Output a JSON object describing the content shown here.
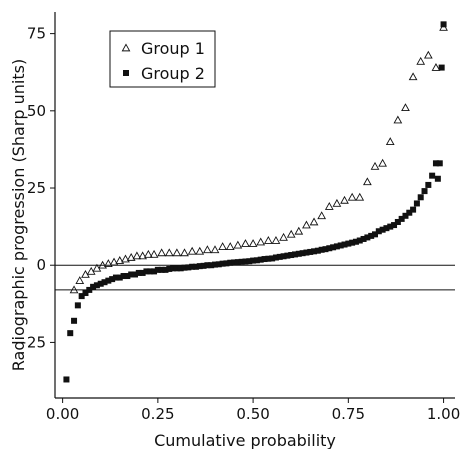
{
  "chart_data": {
    "type": "scatter",
    "xlabel": "Cumulative probability",
    "ylabel": "Radiographic progression (Sharp units)",
    "xlim": [
      -0.02,
      1.03
    ],
    "ylim": [
      -43,
      82
    ],
    "x_ticks": [
      0.0,
      0.25,
      0.5,
      0.75,
      1.0
    ],
    "x_tick_labels": [
      "0.00",
      "0.25",
      "0.50",
      "0.75",
      "1.00"
    ],
    "y_ticks": [
      -25,
      0,
      25,
      50,
      75
    ],
    "y_tick_labels": [
      "−25",
      "0",
      "25",
      "50",
      "75"
    ],
    "reference_lines_y": [
      0,
      -8
    ],
    "legend": {
      "position": "top-left"
    },
    "series": [
      {
        "name": "Group 1",
        "marker": "open-triangle",
        "x": [
          0.03,
          0.045,
          0.06,
          0.075,
          0.09,
          0.105,
          0.12,
          0.135,
          0.15,
          0.165,
          0.18,
          0.195,
          0.21,
          0.225,
          0.24,
          0.26,
          0.28,
          0.3,
          0.32,
          0.34,
          0.36,
          0.38,
          0.4,
          0.42,
          0.44,
          0.46,
          0.48,
          0.5,
          0.52,
          0.54,
          0.56,
          0.58,
          0.6,
          0.62,
          0.64,
          0.66,
          0.68,
          0.7,
          0.72,
          0.74,
          0.76,
          0.78,
          0.8,
          0.82,
          0.84,
          0.86,
          0.88,
          0.9,
          0.92,
          0.94,
          0.96,
          0.98,
          1.0
        ],
        "y": [
          -8,
          -5,
          -3,
          -2,
          -1,
          0,
          0.5,
          1,
          1.5,
          2,
          2.5,
          3,
          3,
          3.5,
          3.5,
          4,
          4,
          4,
          4,
          4.5,
          4.5,
          5,
          5,
          6,
          6,
          6.5,
          7,
          7,
          7.5,
          8,
          8,
          9,
          10,
          11,
          13,
          14,
          16,
          19,
          20,
          21,
          22,
          22,
          27,
          32,
          33,
          40,
          47,
          51,
          61,
          66,
          68,
          64,
          77
        ]
      },
      {
        "name": "Group 2",
        "marker": "filled-square",
        "x": [
          0.01,
          0.02,
          0.03,
          0.04,
          0.05,
          0.06,
          0.07,
          0.08,
          0.09,
          0.1,
          0.11,
          0.12,
          0.13,
          0.14,
          0.15,
          0.16,
          0.17,
          0.18,
          0.19,
          0.2,
          0.21,
          0.22,
          0.23,
          0.24,
          0.25,
          0.26,
          0.27,
          0.28,
          0.29,
          0.3,
          0.31,
          0.32,
          0.33,
          0.34,
          0.35,
          0.36,
          0.37,
          0.38,
          0.39,
          0.4,
          0.41,
          0.42,
          0.43,
          0.44,
          0.45,
          0.46,
          0.47,
          0.48,
          0.49,
          0.5,
          0.51,
          0.52,
          0.53,
          0.54,
          0.55,
          0.56,
          0.57,
          0.58,
          0.59,
          0.6,
          0.61,
          0.62,
          0.63,
          0.64,
          0.65,
          0.66,
          0.67,
          0.68,
          0.69,
          0.7,
          0.71,
          0.72,
          0.73,
          0.74,
          0.75,
          0.76,
          0.77,
          0.78,
          0.79,
          0.8,
          0.81,
          0.82,
          0.83,
          0.84,
          0.85,
          0.86,
          0.87,
          0.88,
          0.89,
          0.9,
          0.91,
          0.92,
          0.93,
          0.94,
          0.95,
          0.96,
          0.97,
          0.98,
          0.985,
          0.99,
          0.995,
          1.0
        ],
        "y": [
          -37,
          -22,
          -18,
          -13,
          -10,
          -9,
          -8,
          -7,
          -6.5,
          -6,
          -5.5,
          -5,
          -4.5,
          -4,
          -4,
          -3.5,
          -3.5,
          -3,
          -3,
          -2.5,
          -2.5,
          -2,
          -2,
          -2,
          -1.5,
          -1.5,
          -1.5,
          -1.2,
          -1,
          -1,
          -1,
          -0.8,
          -0.7,
          -0.5,
          -0.5,
          -0.3,
          -0.2,
          0,
          0,
          0.2,
          0.3,
          0.5,
          0.6,
          0.8,
          0.9,
          1,
          1.1,
          1.2,
          1.3,
          1.5,
          1.6,
          1.8,
          2,
          2.1,
          2.2,
          2.5,
          2.7,
          2.9,
          3.1,
          3.3,
          3.5,
          3.7,
          3.9,
          4.1,
          4.3,
          4.5,
          4.7,
          5,
          5.2,
          5.5,
          5.8,
          6.1,
          6.4,
          6.7,
          7,
          7.3,
          7.6,
          8,
          8.5,
          9,
          9.5,
          10,
          11,
          11.5,
          12,
          12.5,
          13,
          14,
          15,
          16,
          17,
          18,
          20,
          22,
          24,
          26,
          29,
          33,
          28,
          33,
          64,
          78
        ]
      }
    ]
  }
}
